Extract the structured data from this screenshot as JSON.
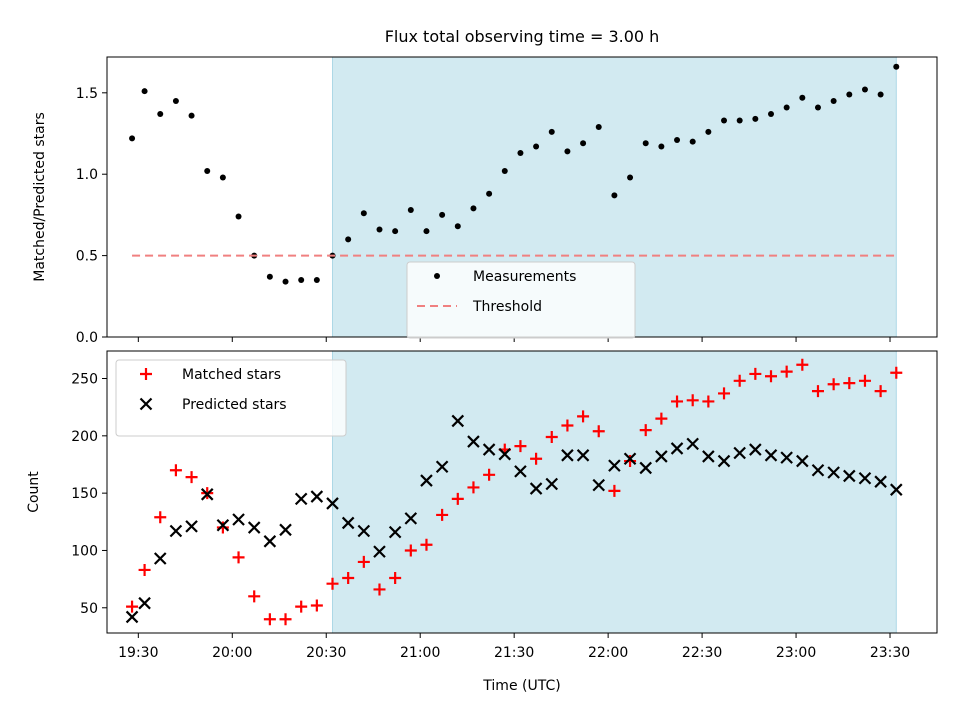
{
  "chart_data": {
    "title": "Flux total observing time = 3.00 h",
    "xlabel": "Time (UTC)",
    "x_ticks": [
      "19:30",
      "20:00",
      "20:30",
      "21:00",
      "21:30",
      "22:00",
      "22:30",
      "23:00",
      "23:30"
    ],
    "x_range": [
      "19:20",
      "23:45"
    ],
    "shaded_interval": {
      "start": "20:32",
      "end": "23:32",
      "color": "#add8e6"
    },
    "times": [
      "19:28",
      "19:32",
      "19:37",
      "19:42",
      "19:47",
      "19:52",
      "19:57",
      "20:02",
      "20:07",
      "20:12",
      "20:17",
      "20:22",
      "20:27",
      "20:32",
      "20:37",
      "20:42",
      "20:47",
      "20:52",
      "20:57",
      "21:02",
      "21:07",
      "21:12",
      "21:17",
      "21:22",
      "21:27",
      "21:32",
      "21:37",
      "21:42",
      "21:47",
      "21:52",
      "21:57",
      "22:02",
      "22:07",
      "22:12",
      "22:17",
      "22:22",
      "22:27",
      "22:32",
      "22:37",
      "22:42",
      "22:47",
      "22:52",
      "22:57",
      "23:02",
      "23:07",
      "23:12",
      "23:17",
      "23:22",
      "23:27",
      "23:32"
    ],
    "panels": [
      {
        "type": "scatter",
        "ylabel": "Matched/Predicted stars",
        "ylim": [
          0,
          1.72
        ],
        "y_ticks": [
          "0.0",
          "0.5",
          "1.0",
          "1.5"
        ],
        "legend_position": "bottom-center",
        "series": [
          {
            "name": "Measurements",
            "marker": "dot",
            "color": "#000000",
            "values": [
              1.22,
              1.51,
              1.37,
              1.45,
              1.36,
              1.02,
              0.98,
              0.74,
              0.5,
              0.37,
              0.34,
              0.35,
              0.35,
              0.5,
              0.6,
              0.76,
              0.66,
              0.65,
              0.78,
              0.65,
              0.75,
              0.68,
              0.79,
              0.88,
              1.02,
              1.13,
              1.17,
              1.26,
              1.14,
              1.19,
              1.29,
              0.87,
              0.98,
              1.19,
              1.17,
              1.21,
              1.2,
              1.26,
              1.33,
              1.33,
              1.34,
              1.37,
              1.41,
              1.47,
              1.41,
              1.45,
              1.49,
              1.52,
              1.49,
              1.66
            ]
          },
          {
            "name": "Threshold",
            "marker": "dashed-line",
            "color": "#f08080",
            "value": 0.5,
            "range": [
              "19:28",
              "23:32"
            ]
          }
        ]
      },
      {
        "type": "scatter",
        "ylabel": "Count",
        "ylim": [
          28,
          274
        ],
        "y_ticks": [
          "50",
          "100",
          "150",
          "200",
          "250"
        ],
        "legend_position": "top-left",
        "series": [
          {
            "name": "Matched stars",
            "marker": "plus",
            "color": "#ff0000",
            "values": [
              51,
              83,
              129,
              170,
              164,
              150,
              120,
              94,
              60,
              40,
              40,
              51,
              52,
              71,
              76,
              90,
              66,
              76,
              100,
              105,
              131,
              145,
              155,
              166,
              188,
              191,
              180,
              199,
              209,
              217,
              204,
              152,
              178,
              205,
              215,
              230,
              231,
              230,
              237,
              248,
              254,
              252,
              256,
              262,
              239,
              245,
              246,
              248,
              239,
              255
            ]
          },
          {
            "name": "Predicted stars",
            "marker": "x",
            "color": "#000000",
            "values": [
              42,
              54,
              93,
              117,
              121,
              149,
              122,
              127,
              120,
              108,
              118,
              145,
              147,
              141,
              124,
              117,
              99,
              116,
              128,
              161,
              173,
              213,
              195,
              188,
              184,
              169,
              154,
              158,
              183,
              183,
              157,
              174,
              180,
              172,
              182,
              189,
              193,
              182,
              178,
              185,
              188,
              183,
              181,
              178,
              170,
              168,
              165,
              163,
              160,
              153
            ]
          }
        ]
      }
    ]
  }
}
